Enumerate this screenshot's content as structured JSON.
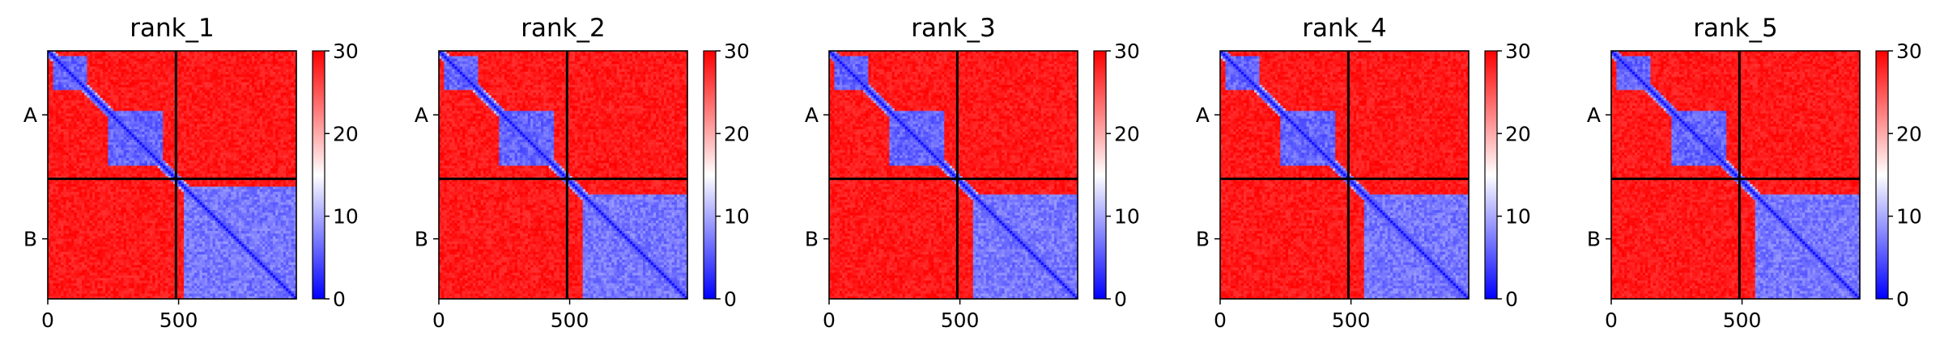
{
  "chart_data": [
    {
      "type": "heatmap",
      "title": "rank_1",
      "row_tick_labels": [
        "A",
        "B"
      ],
      "x_ticks": [
        0,
        500
      ],
      "x_tick_labels": [
        "0",
        "500"
      ],
      "colorbar": {
        "range": [
          0,
          30
        ],
        "ticks": [
          0,
          10,
          20,
          30
        ],
        "tick_labels": [
          "0",
          "10",
          "20",
          "30"
        ],
        "colors": [
          "#0000ff",
          "#ffffff",
          "#ff0000"
        ]
      },
      "chain_lengths": {
        "A": 490,
        "B": 460
      },
      "domains": [
        {
          "start": 20,
          "end": 150,
          "mean_value": 4
        },
        {
          "start": 235,
          "end": 440,
          "mean_value": 4
        },
        {
          "start": 520,
          "end": 950,
          "mean_value": 5
        }
      ],
      "off_diagonal_value": 30
    },
    {
      "type": "heatmap",
      "title": "rank_2",
      "row_tick_labels": [
        "A",
        "B"
      ],
      "x_ticks": [
        0,
        500
      ],
      "x_tick_labels": [
        "0",
        "500"
      ],
      "colorbar": {
        "range": [
          0,
          30
        ],
        "ticks": [
          0,
          10,
          20,
          30
        ],
        "tick_labels": [
          "0",
          "10",
          "20",
          "30"
        ],
        "colors": [
          "#0000ff",
          "#ffffff",
          "#ff0000"
        ]
      },
      "chain_lengths": {
        "A": 490,
        "B": 460
      },
      "domains": [
        {
          "start": 20,
          "end": 150,
          "mean_value": 4
        },
        {
          "start": 235,
          "end": 440,
          "mean_value": 4
        },
        {
          "start": 555,
          "end": 950,
          "mean_value": 5
        }
      ],
      "off_diagonal_value": 30
    },
    {
      "type": "heatmap",
      "title": "rank_3",
      "row_tick_labels": [
        "A",
        "B"
      ],
      "x_ticks": [
        0,
        500
      ],
      "x_tick_labels": [
        "0",
        "500"
      ],
      "colorbar": {
        "range": [
          0,
          30
        ],
        "ticks": [
          0,
          10,
          20,
          30
        ],
        "tick_labels": [
          "0",
          "10",
          "20",
          "30"
        ],
        "colors": [
          "#0000ff",
          "#ffffff",
          "#ff0000"
        ]
      },
      "chain_lengths": {
        "A": 490,
        "B": 460
      },
      "domains": [
        {
          "start": 20,
          "end": 150,
          "mean_value": 4
        },
        {
          "start": 235,
          "end": 440,
          "mean_value": 4
        },
        {
          "start": 555,
          "end": 950,
          "mean_value": 5
        }
      ],
      "off_diagonal_value": 30
    },
    {
      "type": "heatmap",
      "title": "rank_4",
      "row_tick_labels": [
        "A",
        "B"
      ],
      "x_ticks": [
        0,
        500
      ],
      "x_tick_labels": [
        "0",
        "500"
      ],
      "colorbar": {
        "range": [
          0,
          30
        ],
        "ticks": [
          0,
          10,
          20,
          30
        ],
        "tick_labels": [
          "0",
          "10",
          "20",
          "30"
        ],
        "colors": [
          "#0000ff",
          "#ffffff",
          "#ff0000"
        ]
      },
      "chain_lengths": {
        "A": 490,
        "B": 460
      },
      "domains": [
        {
          "start": 20,
          "end": 150,
          "mean_value": 4
        },
        {
          "start": 235,
          "end": 440,
          "mean_value": 4
        },
        {
          "start": 555,
          "end": 950,
          "mean_value": 5
        }
      ],
      "off_diagonal_value": 30
    },
    {
      "type": "heatmap",
      "title": "rank_5",
      "row_tick_labels": [
        "A",
        "B"
      ],
      "x_ticks": [
        0,
        500
      ],
      "x_tick_labels": [
        "0",
        "500"
      ],
      "colorbar": {
        "range": [
          0,
          30
        ],
        "ticks": [
          0,
          10,
          20,
          30
        ],
        "tick_labels": [
          "0",
          "10",
          "20",
          "30"
        ],
        "colors": [
          "#0000ff",
          "#ffffff",
          "#ff0000"
        ]
      },
      "chain_lengths": {
        "A": 490,
        "B": 460
      },
      "domains": [
        {
          "start": 20,
          "end": 150,
          "mean_value": 4
        },
        {
          "start": 235,
          "end": 440,
          "mean_value": 4
        },
        {
          "start": 555,
          "end": 950,
          "mean_value": 5
        }
      ],
      "off_diagonal_value": 30
    }
  ]
}
